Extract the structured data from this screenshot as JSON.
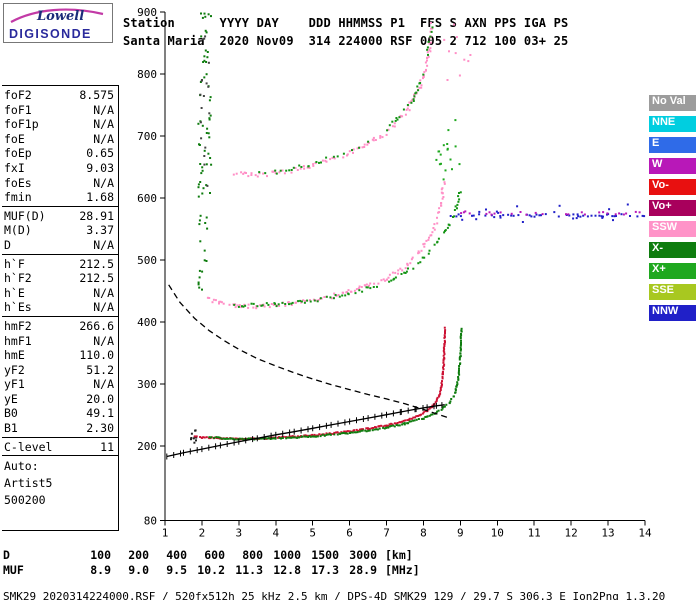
{
  "logo": {
    "brand": "Lowell",
    "product": "DIGISONDE"
  },
  "header": {
    "line1": "Station      YYYY DAY    DDD HHMMSS P1  FFS S AXN PPS IGA PS",
    "line2": "Santa Maria  2020 Nov09  314 224000 RSF 005 2 712 100 03+ 25"
  },
  "params": {
    "groups": [
      {
        "rows": [
          {
            "label": "foF2",
            "value": "8.575"
          },
          {
            "label": "foF1",
            "value": "N/A"
          },
          {
            "label": "foF1p",
            "value": "N/A"
          },
          {
            "label": "foE",
            "value": "N/A"
          },
          {
            "label": "foEp",
            "value": "0.65"
          },
          {
            "label": "fxI",
            "value": "9.03"
          },
          {
            "label": "foEs",
            "value": "N/A"
          },
          {
            "label": "fmin",
            "value": "1.68"
          }
        ]
      },
      {
        "rows": [
          {
            "label": "MUF(D)",
            "value": "28.91"
          },
          {
            "label": "M(D)",
            "value": "3.37"
          },
          {
            "label": "D",
            "value": "N/A"
          }
        ]
      },
      {
        "rows": [
          {
            "label": "h`F",
            "value": "212.5"
          },
          {
            "label": "h`F2",
            "value": "212.5"
          },
          {
            "label": "h`E",
            "value": "N/A"
          },
          {
            "label": "h`Es",
            "value": "N/A"
          }
        ]
      },
      {
        "rows": [
          {
            "label": "hmF2",
            "value": "266.6"
          },
          {
            "label": "hmF1",
            "value": "N/A"
          },
          {
            "label": "hmE",
            "value": "110.0"
          },
          {
            "label": "yF2",
            "value": "51.2"
          },
          {
            "label": "yF1",
            "value": "N/A"
          },
          {
            "label": "yE",
            "value": "20.0"
          },
          {
            "label": "B0",
            "value": "49.1"
          },
          {
            "label": "B1",
            "value": "2.30"
          }
        ]
      },
      {
        "rows": [
          {
            "label": "C-level",
            "value": "11"
          }
        ]
      },
      {
        "wide": true,
        "rows": [
          {
            "label": "Auto:",
            "value": ""
          },
          {
            "label": "Artist5",
            "value": ""
          },
          {
            "label": "500200",
            "value": ""
          }
        ]
      }
    ]
  },
  "legend": {
    "items": [
      {
        "label": "No Val",
        "color": "#9C9C9C"
      },
      {
        "label": "NNE",
        "color": "#00CEE0"
      },
      {
        "label": "E",
        "color": "#2F6BE8"
      },
      {
        "label": "W",
        "color": "#B818B8"
      },
      {
        "label": "Vo-",
        "color": "#E81010"
      },
      {
        "label": "Vo+",
        "color": "#A8005C"
      },
      {
        "label": "SSW",
        "color": "#FF93C8"
      },
      {
        "label": "X-",
        "color": "#0E7C0E"
      },
      {
        "label": "X+",
        "color": "#1FA81F"
      },
      {
        "label": "SSE",
        "color": "#A8C820"
      },
      {
        "label": "NNW",
        "color": "#2020C8"
      }
    ]
  },
  "dmuf": {
    "rows": [
      {
        "label": "D",
        "values": [
          "100",
          "200",
          "400",
          "600",
          "800",
          "1000",
          "1500",
          "3000"
        ],
        "unit": "[km]"
      },
      {
        "label": "MUF",
        "values": [
          "8.9",
          "9.0",
          "9.5",
          "10.2",
          "11.3",
          "12.8",
          "17.3",
          "28.9"
        ],
        "unit": "[MHz]"
      }
    ]
  },
  "status_line": "SMK29_2020314224000.RSF / 520fx512h 25 kHz 2.5 km / DPS-4D SMK29 129 / 29.7 S 306.3 E Ion2Png 1.3.20",
  "chart_data": {
    "type": "scatter",
    "title": "",
    "xlabel": "",
    "ylabel": "",
    "x_unit": "MHz",
    "y_unit": "km",
    "xlim": [
      1,
      14
    ],
    "ylim": [
      80,
      900
    ],
    "x_ticks": [
      1,
      2,
      3,
      4,
      5,
      6,
      7,
      8,
      9,
      10,
      11,
      12,
      13,
      14
    ],
    "y_ticks": [
      80,
      200,
      300,
      400,
      500,
      600,
      700,
      800,
      900
    ],
    "grid": false,
    "legend_position": "right",
    "traces": [
      {
        "name": "scatter-left-column-green",
        "style": "cloud",
        "color": "#0E7C0E",
        "region": [
          1.9,
          2.25,
          560,
          900
        ],
        "n": 55
      },
      {
        "name": "scatter-left-column-dark",
        "style": "cloud",
        "color": "#444444",
        "region": [
          1.95,
          2.2,
          600,
          880
        ],
        "n": 18
      },
      {
        "name": "scatter-left-mid-green",
        "style": "cloud",
        "color": "#0E7C0E",
        "region": [
          1.9,
          2.15,
          430,
          560
        ],
        "n": 14
      },
      {
        "name": "scatter-above-2hop-green",
        "style": "cloud",
        "color": "#1FA81F",
        "region": [
          8.3,
          9.0,
          620,
          730
        ],
        "n": 18
      },
      {
        "name": "scatter-top-right-pink",
        "style": "cloud",
        "color": "#FF8FC6",
        "region": [
          8.5,
          9.3,
          790,
          880
        ],
        "n": 10
      },
      {
        "name": "scatter-rfi-blue",
        "style": "cloud",
        "color": "#2020C8",
        "region": [
          9.0,
          13.9,
          560,
          590
        ],
        "n": 20
      },
      {
        "name": "scatter-trace-start-dark",
        "style": "cloud",
        "color": "#222222",
        "region": [
          1.68,
          1.85,
          205,
          230
        ],
        "n": 10
      },
      {
        "name": "f-trace-3hop-o",
        "style": "dots",
        "color": "#FF8FC6",
        "size": 2,
        "step": 2.2,
        "spread": 2.2,
        "density": 0.75,
        "points": [
          [
            2.9,
            640
          ],
          [
            3.2,
            638
          ],
          [
            3.5,
            637
          ],
          [
            4.0,
            640
          ],
          [
            4.5,
            645
          ],
          [
            5.0,
            652
          ],
          [
            5.5,
            661
          ],
          [
            6.0,
            673
          ],
          [
            6.5,
            687
          ],
          [
            7.0,
            705
          ],
          [
            7.3,
            722
          ],
          [
            7.6,
            745
          ],
          [
            7.8,
            768
          ],
          [
            8.0,
            795
          ],
          [
            8.1,
            820
          ],
          [
            8.18,
            850
          ],
          [
            8.23,
            880
          ]
        ]
      },
      {
        "name": "f-trace-3hop-x",
        "style": "dots",
        "color": "#159415",
        "size": 2,
        "step": 2.8,
        "spread": 2.0,
        "density": 0.55,
        "points": [
          [
            3.3,
            642
          ],
          [
            4.0,
            641
          ],
          [
            5.0,
            655
          ],
          [
            6.0,
            676
          ],
          [
            6.8,
            700
          ],
          [
            7.3,
            726
          ],
          [
            7.7,
            758
          ],
          [
            8.0,
            800
          ],
          [
            8.15,
            845
          ],
          [
            8.25,
            885
          ]
        ]
      },
      {
        "name": "f-trace-2hop-o",
        "style": "dots",
        "color": "#FF8FC6",
        "size": 2,
        "step": 2.1,
        "spread": 2.0,
        "density": 0.8,
        "points": [
          [
            2.1,
            438
          ],
          [
            2.5,
            430
          ],
          [
            3.0,
            426
          ],
          [
            3.5,
            425
          ],
          [
            4.0,
            427
          ],
          [
            4.5,
            430
          ],
          [
            5.0,
            435
          ],
          [
            5.5,
            441
          ],
          [
            6.0,
            449
          ],
          [
            6.5,
            458
          ],
          [
            7.0,
            470
          ],
          [
            7.3,
            480
          ],
          [
            7.6,
            494
          ],
          [
            7.9,
            512
          ],
          [
            8.1,
            528
          ],
          [
            8.25,
            545
          ],
          [
            8.35,
            562
          ],
          [
            8.45,
            582
          ],
          [
            8.52,
            605
          ],
          [
            8.56,
            625
          ]
        ]
      },
      {
        "name": "f-trace-2hop-x",
        "style": "dots",
        "color": "#159415",
        "size": 2,
        "step": 2.4,
        "spread": 1.8,
        "density": 0.65,
        "points": [
          [
            2.5,
            432
          ],
          [
            3.0,
            427
          ],
          [
            4.0,
            428
          ],
          [
            5.0,
            434
          ],
          [
            6.0,
            446
          ],
          [
            7.0,
            464
          ],
          [
            7.5,
            480
          ],
          [
            8.0,
            502
          ],
          [
            8.4,
            530
          ],
          [
            8.7,
            556
          ],
          [
            8.9,
            585
          ],
          [
            9.0,
            615
          ]
        ]
      },
      {
        "name": "rfi-band-blue",
        "style": "dots",
        "color": "#2020C8",
        "size": 2,
        "step": 2.6,
        "spread": 1.4,
        "density": 0.6,
        "points": [
          [
            8.75,
            572
          ],
          [
            14.0,
            572
          ]
        ]
      },
      {
        "name": "rfi-band-violet",
        "style": "dots",
        "color": "#B818B8",
        "size": 2,
        "step": 3.2,
        "spread": 1.8,
        "density": 0.45,
        "points": [
          [
            8.9,
            576
          ],
          [
            14.0,
            576
          ]
        ]
      },
      {
        "name": "f-trace-1hop-o",
        "style": "dots",
        "color": "#CC1133",
        "size": 2,
        "step": 1.7,
        "spread": 0.7,
        "density": 0.95,
        "points": [
          [
            1.8,
            216
          ],
          [
            2.0,
            214
          ],
          [
            2.5,
            212
          ],
          [
            3.0,
            211.5
          ],
          [
            3.5,
            212
          ],
          [
            4.0,
            213
          ],
          [
            4.5,
            215
          ],
          [
            5.0,
            217
          ],
          [
            5.5,
            220
          ],
          [
            6.0,
            223.5
          ],
          [
            6.5,
            228
          ],
          [
            7.0,
            233
          ],
          [
            7.3,
            237
          ],
          [
            7.6,
            243
          ],
          [
            7.9,
            250
          ],
          [
            8.1,
            257
          ],
          [
            8.25,
            264
          ],
          [
            8.35,
            272
          ],
          [
            8.43,
            282
          ],
          [
            8.49,
            296
          ],
          [
            8.53,
            315
          ],
          [
            8.555,
            340
          ],
          [
            8.57,
            365
          ],
          [
            8.575,
            390
          ]
        ]
      },
      {
        "name": "f-trace-1hop-x",
        "style": "dots",
        "color": "#0E7C0E",
        "size": 2,
        "step": 1.7,
        "spread": 0.7,
        "density": 0.9,
        "points": [
          [
            2.2,
            214
          ],
          [
            3.0,
            211
          ],
          [
            4.0,
            212
          ],
          [
            5.0,
            215.5
          ],
          [
            6.0,
            221
          ],
          [
            7.0,
            229.5
          ],
          [
            7.5,
            236
          ],
          [
            8.0,
            245
          ],
          [
            8.3,
            252
          ],
          [
            8.55,
            262
          ],
          [
            8.7,
            270
          ],
          [
            8.82,
            280
          ],
          [
            8.9,
            295
          ],
          [
            8.96,
            315
          ],
          [
            9.0,
            345
          ],
          [
            9.03,
            390
          ]
        ]
      },
      {
        "name": "muf-transmission-curve",
        "style": "dashed",
        "color": "#000000",
        "width": 1.3,
        "points": [
          [
            1.1,
            460
          ],
          [
            1.4,
            432
          ],
          [
            1.8,
            406
          ],
          [
            2.2,
            386
          ],
          [
            2.6,
            370
          ],
          [
            3.0,
            356
          ],
          [
            3.5,
            341
          ],
          [
            4.0,
            329
          ],
          [
            4.5,
            318
          ],
          [
            5.0,
            308
          ],
          [
            5.5,
            299
          ],
          [
            6.0,
            291
          ],
          [
            6.5,
            283
          ],
          [
            7.0,
            276
          ],
          [
            7.5,
            268
          ],
          [
            8.0,
            259
          ],
          [
            8.4,
            251
          ],
          [
            8.7,
            245
          ]
        ]
      },
      {
        "name": "electron-density-profile",
        "style": "profile",
        "color": "#000000",
        "width": 1.3,
        "points": [
          [
            1.05,
            183
          ],
          [
            1.5,
            189
          ],
          [
            2.0,
            195
          ],
          [
            2.5,
            201
          ],
          [
            3.0,
            207
          ],
          [
            3.5,
            212.5
          ],
          [
            4.0,
            218
          ],
          [
            4.5,
            223
          ],
          [
            5.0,
            228.5
          ],
          [
            5.5,
            234
          ],
          [
            6.0,
            239.5
          ],
          [
            6.5,
            245
          ],
          [
            7.0,
            250.5
          ],
          [
            7.4,
            255
          ],
          [
            7.8,
            259.5
          ],
          [
            8.1,
            262.5
          ],
          [
            8.35,
            264.8
          ],
          [
            8.5,
            266
          ],
          [
            8.575,
            266.6
          ]
        ]
      }
    ]
  }
}
